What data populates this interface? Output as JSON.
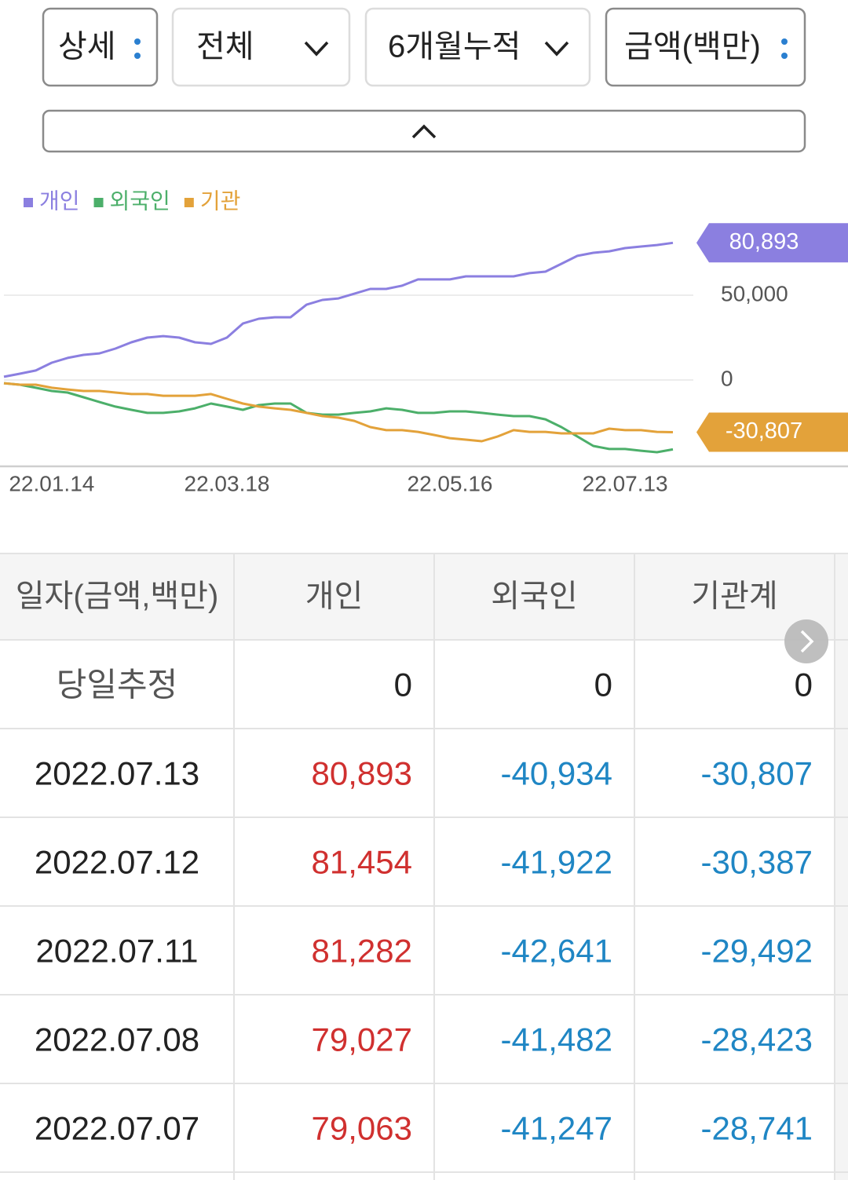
{
  "controls": [
    "상세",
    "전체",
    "6개월누적",
    "금액(백만)"
  ],
  "chart_data": {
    "type": "line",
    "categories": [
      null,
      null,
      null,
      "22.01.14",
      null,
      null,
      null,
      null,
      null,
      null,
      null,
      null,
      null,
      null,
      "22.03.18",
      null,
      null,
      null,
      null,
      null,
      null,
      null,
      null,
      null,
      null,
      null,
      null,
      null,
      "22.05.16",
      null,
      null,
      null,
      null,
      null,
      null,
      null,
      null,
      null,
      null,
      "22.07.13",
      null,
      null,
      null
    ],
    "series": [
      {
        "name": "개인",
        "color": "#8b7fe0",
        "values": [
          1900,
          3700,
          5600,
          10200,
          13000,
          14800,
          15700,
          18500,
          22200,
          25000,
          25900,
          25000,
          22200,
          21300,
          25000,
          33300,
          36100,
          37000,
          37000,
          44400,
          47200,
          48100,
          50900,
          53700,
          53700,
          55600,
          59300,
          59300,
          59300,
          61100,
          61100,
          61100,
          61100,
          63000,
          63900,
          68500,
          73200,
          75000,
          75900,
          77800,
          78700,
          79600,
          80893
        ],
        "value_labels": [
          null,
          null,
          null,
          null,
          null,
          null,
          null,
          null,
          null,
          null,
          null,
          null,
          null,
          null,
          null,
          null,
          null,
          null,
          null,
          null,
          null,
          null,
          null,
          null,
          null,
          null,
          null,
          null,
          null,
          null,
          null,
          null,
          null,
          null,
          null,
          null,
          null,
          null,
          null,
          null,
          null,
          null,
          "80,893"
        ]
      },
      {
        "name": "외국인",
        "color": "#4caf6a",
        "values": [
          -1900,
          -2800,
          -4600,
          -6500,
          -7400,
          -10200,
          -13000,
          -15700,
          -17600,
          -19400,
          -19400,
          -18500,
          -16700,
          -13900,
          -15700,
          -17600,
          -14800,
          -13900,
          -13900,
          -19400,
          -20400,
          -20400,
          -19400,
          -18500,
          -16700,
          -17600,
          -19400,
          -19400,
          -18500,
          -18500,
          -19400,
          -20400,
          -21300,
          -21300,
          -23200,
          -27800,
          -33300,
          -38900,
          -40700,
          -40700,
          -41700,
          -42600,
          -40934
        ]
      },
      {
        "name": "기관",
        "color": "#e3a23a",
        "values": [
          -1900,
          -2800,
          -2800,
          -4600,
          -5600,
          -6500,
          -6500,
          -7400,
          -8300,
          -8300,
          -9300,
          -9300,
          -9300,
          -8300,
          -11100,
          -13900,
          -15700,
          -16700,
          -17600,
          -19400,
          -21300,
          -22200,
          -24100,
          -27800,
          -29600,
          -29600,
          -30600,
          -32400,
          -34300,
          -35200,
          -36100,
          -33300,
          -29600,
          -30600,
          -30600,
          -31500,
          -31500,
          -31500,
          -28700,
          -29600,
          -29600,
          -30600,
          -30807
        ],
        "value_labels": [
          null,
          null,
          null,
          null,
          null,
          null,
          null,
          null,
          null,
          null,
          null,
          null,
          null,
          null,
          null,
          null,
          null,
          null,
          null,
          null,
          null,
          null,
          null,
          null,
          null,
          null,
          null,
          null,
          null,
          null,
          null,
          null,
          null,
          null,
          null,
          null,
          null,
          null,
          null,
          null,
          null,
          null,
          "-30,807"
        ]
      }
    ],
    "ylim": [
      -50000,
      90000
    ],
    "yticks": [
      0,
      {
        "value": 50000,
        "label": "50,000"
      }
    ],
    "grid": true,
    "legend": "top-left"
  },
  "table": {
    "header": [
      "일자(금액,백만)",
      "개인",
      "외국인",
      "기관계"
    ],
    "rows": [
      [
        "당일추정",
        "0",
        "0",
        "0"
      ],
      [
        "2022.07.13",
        "80,893",
        "-40,934",
        "-30,807"
      ],
      [
        "2022.07.12",
        "81,454",
        "-41,922",
        "-30,387"
      ],
      [
        "2022.07.11",
        "81,282",
        "-42,641",
        "-29,492"
      ],
      [
        "2022.07.08",
        "79,027",
        "-41,482",
        "-28,423"
      ],
      [
        "2022.07.07",
        "79,063",
        "-41,247",
        "-28,741"
      ]
    ]
  }
}
